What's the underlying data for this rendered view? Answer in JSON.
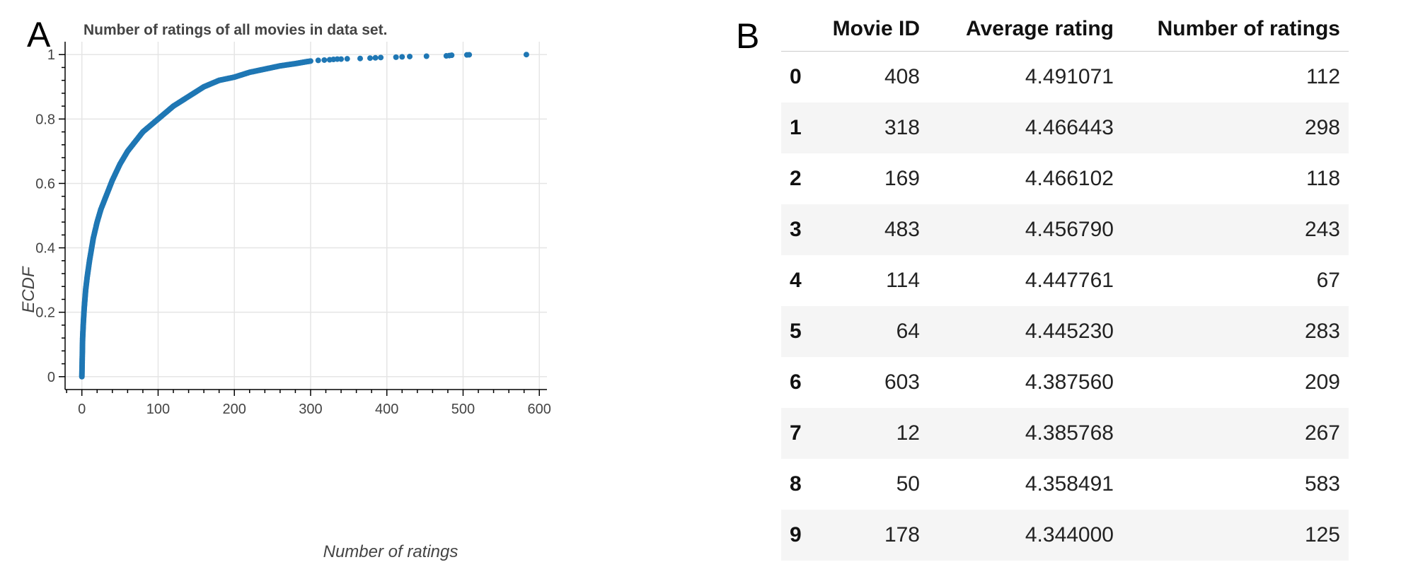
{
  "panels": {
    "a": "A",
    "b": "B"
  },
  "chart_data": {
    "type": "scatter",
    "title": "Number of ratings of all movies in data set.",
    "xlabel": "Number of ratings",
    "ylabel": "ECDF",
    "xlim": [
      -22,
      610
    ],
    "ylim": [
      -0.04,
      1.04
    ],
    "xticks": [
      0,
      100,
      200,
      300,
      400,
      500,
      600
    ],
    "yticks": [
      0,
      0.2,
      0.4,
      0.6,
      0.8,
      1
    ],
    "ytick_labels": [
      "0",
      "0.2",
      "0.4",
      "0.6",
      "0.8",
      "1"
    ],
    "grid": true,
    "color": "#1f77b4",
    "curve_points": [
      [
        0,
        0
      ],
      [
        1,
        0.12
      ],
      [
        2,
        0.17
      ],
      [
        3,
        0.21
      ],
      [
        4,
        0.24
      ],
      [
        5,
        0.27
      ],
      [
        7,
        0.31
      ],
      [
        10,
        0.36
      ],
      [
        15,
        0.43
      ],
      [
        20,
        0.48
      ],
      [
        25,
        0.52
      ],
      [
        30,
        0.55
      ],
      [
        40,
        0.61
      ],
      [
        50,
        0.66
      ],
      [
        60,
        0.7
      ],
      [
        70,
        0.73
      ],
      [
        80,
        0.76
      ],
      [
        90,
        0.78
      ],
      [
        100,
        0.8
      ],
      [
        120,
        0.84
      ],
      [
        140,
        0.87
      ],
      [
        160,
        0.9
      ],
      [
        180,
        0.92
      ],
      [
        200,
        0.93
      ],
      [
        220,
        0.945
      ],
      [
        240,
        0.955
      ],
      [
        260,
        0.965
      ],
      [
        280,
        0.972
      ],
      [
        300,
        0.98
      ]
    ],
    "tail_points": [
      [
        310,
        0.982
      ],
      [
        318,
        0.983
      ],
      [
        325,
        0.984
      ],
      [
        330,
        0.985
      ],
      [
        335,
        0.986
      ],
      [
        340,
        0.986
      ],
      [
        348,
        0.987
      ],
      [
        365,
        0.988
      ],
      [
        378,
        0.989
      ],
      [
        385,
        0.99
      ],
      [
        392,
        0.991
      ],
      [
        412,
        0.992
      ],
      [
        420,
        0.993
      ],
      [
        430,
        0.994
      ],
      [
        452,
        0.995
      ],
      [
        478,
        0.996
      ],
      [
        482,
        0.997
      ],
      [
        485,
        0.998
      ],
      [
        505,
        0.999
      ],
      [
        508,
        0.9995
      ],
      [
        583,
        1.0
      ]
    ]
  },
  "table": {
    "index_header": "",
    "columns": [
      "Movie ID",
      "Average rating",
      "Number of ratings"
    ],
    "rows": [
      {
        "index": "0",
        "movie_id": "408",
        "avg": "4.491071",
        "count": "112"
      },
      {
        "index": "1",
        "movie_id": "318",
        "avg": "4.466443",
        "count": "298"
      },
      {
        "index": "2",
        "movie_id": "169",
        "avg": "4.466102",
        "count": "118"
      },
      {
        "index": "3",
        "movie_id": "483",
        "avg": "4.456790",
        "count": "243"
      },
      {
        "index": "4",
        "movie_id": "114",
        "avg": "4.447761",
        "count": "67"
      },
      {
        "index": "5",
        "movie_id": "64",
        "avg": "4.445230",
        "count": "283"
      },
      {
        "index": "6",
        "movie_id": "603",
        "avg": "4.387560",
        "count": "209"
      },
      {
        "index": "7",
        "movie_id": "12",
        "avg": "4.385768",
        "count": "267"
      },
      {
        "index": "8",
        "movie_id": "50",
        "avg": "4.358491",
        "count": "583"
      },
      {
        "index": "9",
        "movie_id": "178",
        "avg": "4.344000",
        "count": "125"
      }
    ]
  }
}
